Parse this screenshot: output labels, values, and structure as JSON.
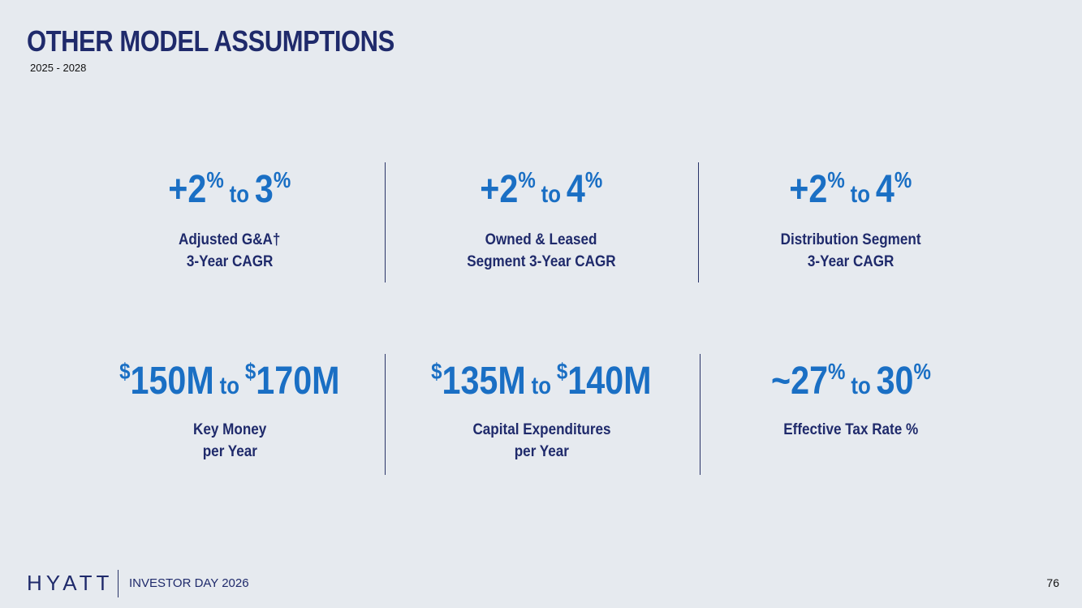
{
  "header": {
    "title": "OTHER MODEL ASSUMPTIONS",
    "subtitle": "2025 - 2028"
  },
  "metrics": [
    {
      "low": {
        "number": "+2",
        "suffix": "%"
      },
      "connector": "to",
      "high": {
        "number": "3",
        "suffix": "%"
      },
      "label": [
        "Adjusted G&A†",
        "3-Year CAGR"
      ]
    },
    {
      "low": {
        "number": "+2",
        "suffix": "%"
      },
      "connector": "to",
      "high": {
        "number": "4",
        "suffix": "%"
      },
      "label": [
        "Owned & Leased",
        "Segment 3-Year CAGR"
      ]
    },
    {
      "low": {
        "number": "+2",
        "suffix": "%"
      },
      "connector": "to",
      "high": {
        "number": "4",
        "suffix": "%"
      },
      "label": [
        "Distribution Segment",
        "3-Year CAGR"
      ]
    },
    {
      "low": {
        "prefix": "$",
        "number": "150M"
      },
      "connector": "to",
      "high": {
        "prefix": "$",
        "number": "170M"
      },
      "label": [
        "Key Money",
        "per Year"
      ]
    },
    {
      "low": {
        "prefix": "$",
        "number": "135M"
      },
      "connector": "to",
      "high": {
        "prefix": "$",
        "number": "140M"
      },
      "label": [
        "Capital Expenditures",
        "per Year"
      ]
    },
    {
      "low": {
        "number": "~27",
        "suffix": "%"
      },
      "connector": "to",
      "high": {
        "number": "30",
        "suffix": "%"
      },
      "label": [
        "Effective Tax Rate %"
      ]
    }
  ],
  "footer": {
    "logo": "HYATT",
    "event": "INVESTOR DAY 2026",
    "page": "76"
  }
}
